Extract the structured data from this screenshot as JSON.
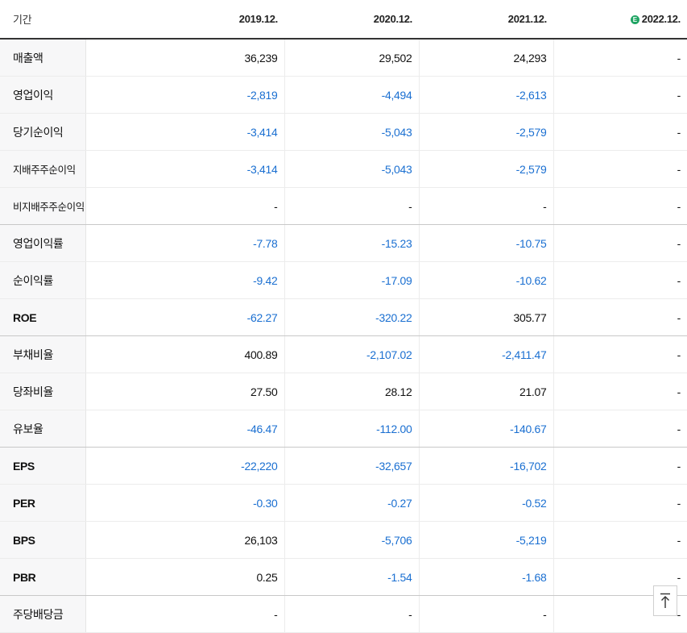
{
  "header": {
    "label": "기간",
    "periods": [
      "2019.12.",
      "2020.12.",
      "2021.12.",
      "2022.12."
    ],
    "estimate_mark": "E"
  },
  "rows": [
    {
      "label": "매출액",
      "values": [
        "36,239",
        "29,502",
        "24,293",
        "-"
      ]
    },
    {
      "label": "영업이익",
      "values": [
        "-2,819",
        "-4,494",
        "-2,613",
        "-"
      ]
    },
    {
      "label": "당기순이익",
      "values": [
        "-3,414",
        "-5,043",
        "-2,579",
        "-"
      ]
    },
    {
      "label": "지배주주순이익",
      "values": [
        "-3,414",
        "-5,043",
        "-2,579",
        "-"
      ]
    },
    {
      "label": "비지배주주순이익",
      "values": [
        "-",
        "-",
        "-",
        "-"
      ]
    },
    {
      "label": "영업이익률",
      "values": [
        "-7.78",
        "-15.23",
        "-10.75",
        "-"
      ]
    },
    {
      "label": "순이익률",
      "values": [
        "-9.42",
        "-17.09",
        "-10.62",
        "-"
      ]
    },
    {
      "label": "ROE",
      "values": [
        "-62.27",
        "-320.22",
        "305.77",
        "-"
      ]
    },
    {
      "label": "부채비율",
      "values": [
        "400.89",
        "-2,107.02",
        "-2,411.47",
        "-"
      ]
    },
    {
      "label": "당좌비율",
      "values": [
        "27.50",
        "28.12",
        "21.07",
        "-"
      ]
    },
    {
      "label": "유보율",
      "values": [
        "-46.47",
        "-112.00",
        "-140.67",
        "-"
      ]
    },
    {
      "label": "EPS",
      "values": [
        "-22,220",
        "-32,657",
        "-16,702",
        "-"
      ]
    },
    {
      "label": "PER",
      "values": [
        "-0.30",
        "-0.27",
        "-0.52",
        "-"
      ]
    },
    {
      "label": "BPS",
      "values": [
        "26,103",
        "-5,706",
        "-5,219",
        "-"
      ]
    },
    {
      "label": "PBR",
      "values": [
        "0.25",
        "-1.54",
        "-1.68",
        "-"
      ]
    },
    {
      "label": "주당배당금",
      "values": [
        "-",
        "-",
        "-",
        "-"
      ]
    }
  ],
  "colors": {
    "negative": "#1a6fd1",
    "positive": "#111111",
    "estimate_badge": "#1fa463",
    "label_background": "#f7f7f8"
  },
  "scroll_top_button": {
    "icon": "arrow-up-to-top-icon"
  }
}
